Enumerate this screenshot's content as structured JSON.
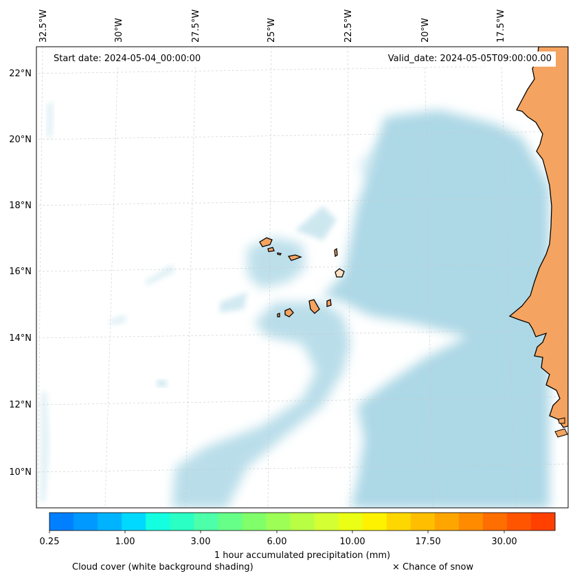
{
  "header": {
    "start_date": "Start date: 2024-05-04_00:00:00",
    "valid_date": "Valid_date: 2024-05-05T09:00:00.00"
  },
  "map": {
    "extent": {
      "lon": [
        -32.7,
        -15.8
      ],
      "lat": [
        8.9,
        22.8
      ]
    },
    "lon_ticks": [
      "32.5°W",
      "30°W",
      "27.5°W",
      "25°W",
      "22.5°W",
      "20°W",
      "17.5°W"
    ],
    "lat_ticks": [
      "22°N",
      "20°N",
      "18°N",
      "16°N",
      "14°N",
      "12°N",
      "10°N"
    ],
    "land_color": "#f4a460",
    "cloud_color": "#add8e6",
    "coastline_color": "#000000",
    "gridlines": true
  },
  "colorbar": {
    "label": "1 hour accumulated precipitation (mm)",
    "tick_labels": [
      "0.25",
      "1.00",
      "3.00",
      "6.00",
      "10.00",
      "17.50",
      "30.00"
    ],
    "colors": [
      "#0080ff",
      "#0099ff",
      "#00b3ff",
      "#00d9ff",
      "#14ffe0",
      "#2affc4",
      "#4dffa8",
      "#66ff88",
      "#80ff6a",
      "#9dff55",
      "#b8ff44",
      "#d4ff33",
      "#eaff15",
      "#fff200",
      "#ffd700",
      "#ffbf00",
      "#ffa500",
      "#ff8c00",
      "#ff6e00",
      "#ff5500",
      "#ff4000"
    ]
  },
  "footer": {
    "cloud_note": "Cloud cover (white background shading)",
    "snow_note": "× Chance of snow"
  }
}
